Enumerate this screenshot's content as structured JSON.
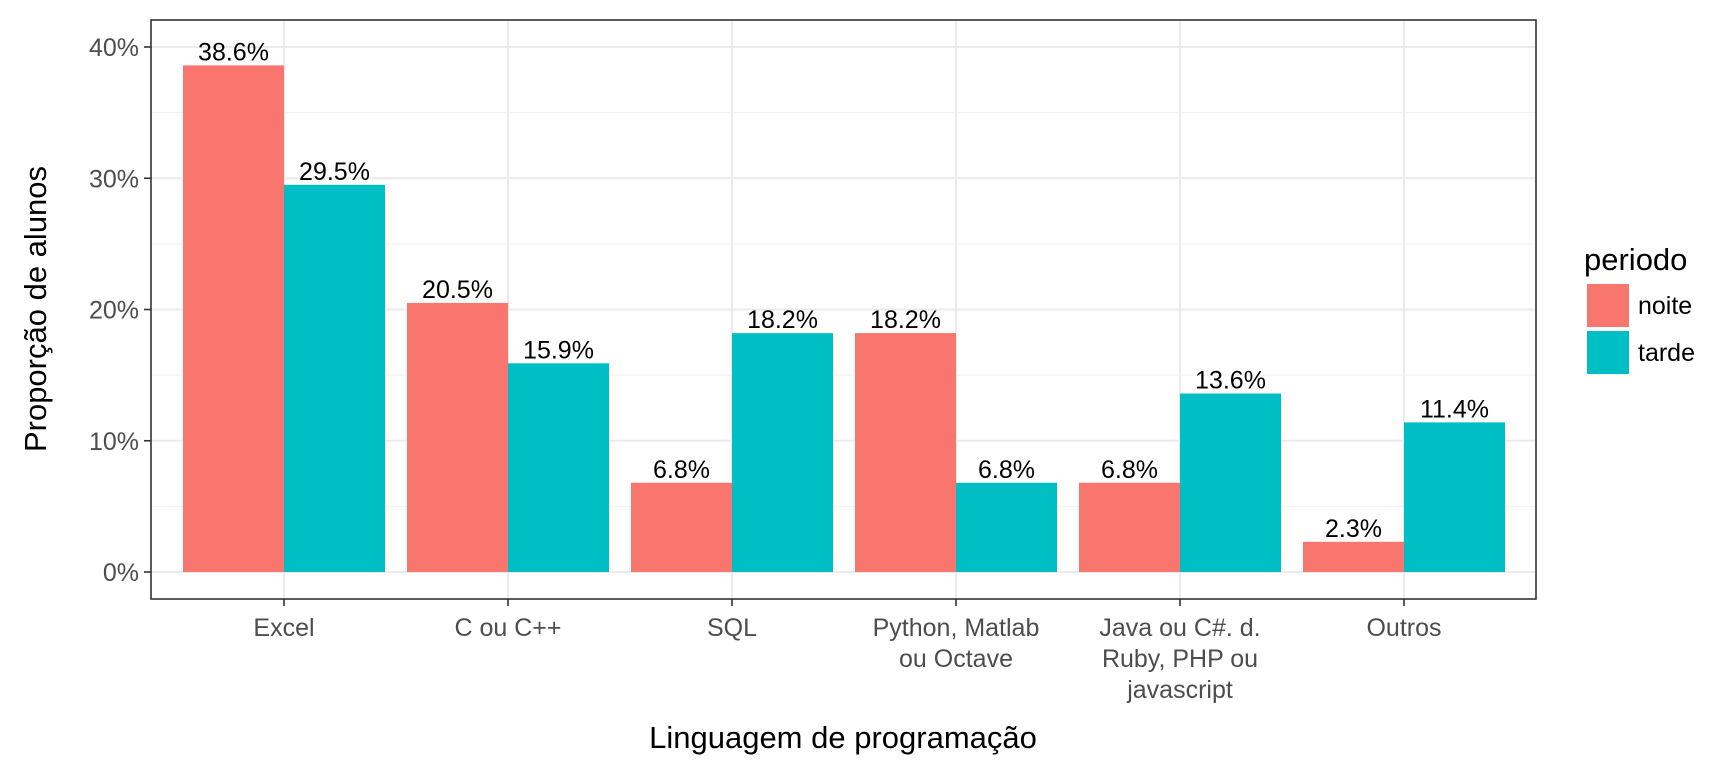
{
  "chart_data": {
    "type": "bar",
    "xlabel": "Linguagem de programação",
    "ylabel": "Proporção de alunos",
    "ylim": [
      0,
      0.42
    ],
    "yticks": [
      0,
      0.1,
      0.2,
      0.3,
      0.4
    ],
    "ytick_labels": [
      "0%",
      "10%",
      "20%",
      "30%",
      "40%"
    ],
    "grid": true,
    "categories": [
      [
        "Excel"
      ],
      [
        "C ou C++"
      ],
      [
        "SQL"
      ],
      [
        "Python, Matlab",
        "ou Octave"
      ],
      [
        "Java ou C#. d.",
        "Ruby, PHP ou",
        "javascript"
      ],
      [
        "Outros"
      ]
    ],
    "series": [
      {
        "name": "noite",
        "color": "#F8766D",
        "values": [
          0.386,
          0.205,
          0.068,
          0.182,
          0.068,
          0.023
        ],
        "labels": [
          "38.6%",
          "20.5%",
          "6.8%",
          "18.2%",
          "6.8%",
          "2.3%"
        ]
      },
      {
        "name": "tarde",
        "color": "#00BFC4",
        "values": [
          0.295,
          0.159,
          0.182,
          0.068,
          0.136,
          0.114
        ],
        "labels": [
          "29.5%",
          "15.9%",
          "18.2%",
          "6.8%",
          "13.6%",
          "11.4%"
        ]
      }
    ],
    "legend": {
      "title": "periodo",
      "position": "right"
    }
  }
}
